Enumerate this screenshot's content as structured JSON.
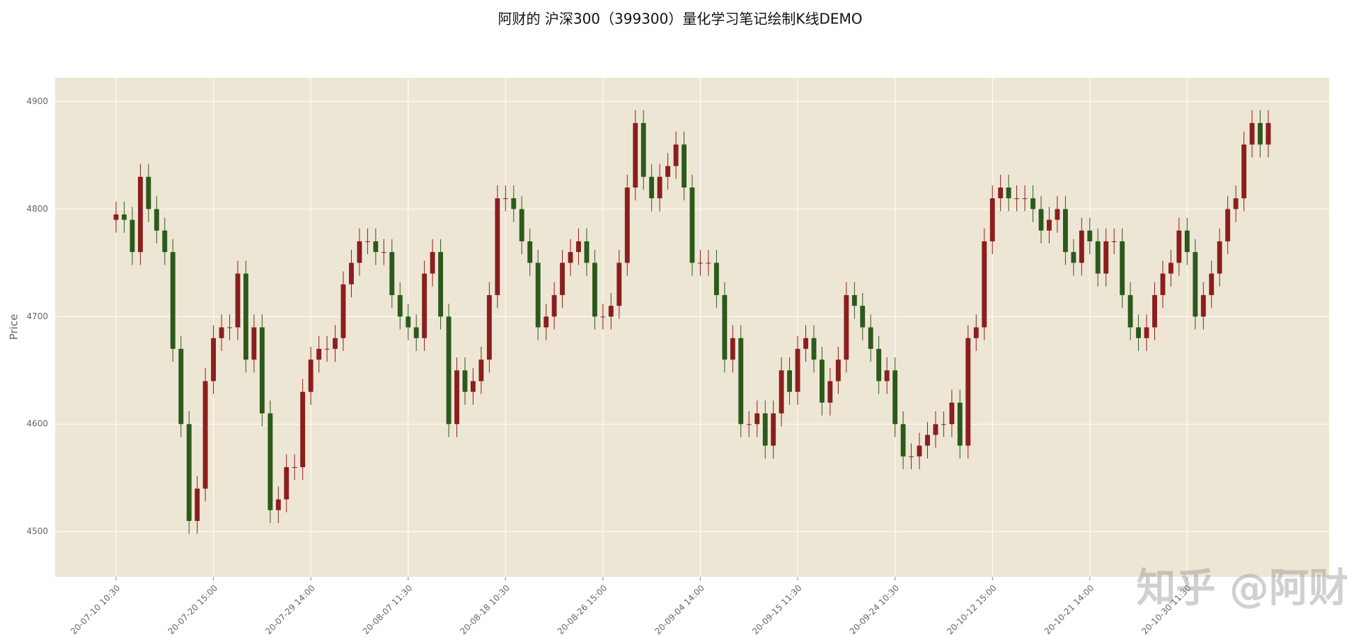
{
  "chart_data": {
    "type": "candlestick",
    "title": "阿财的 沪深300（399300）量化学习笔记绘制K线DEMO",
    "ylabel": "Price",
    "watermark": "知乎 @阿财",
    "up_color": "#8b1e1e",
    "down_color": "#2b5a1c",
    "grid": true,
    "xlim": [
      -7.5,
      149.5
    ],
    "ylim": [
      4458,
      4922
    ],
    "yticks": [
      4500,
      4600,
      4700,
      4800,
      4900
    ],
    "xticks": [
      {
        "value": 0,
        "label": "20-07-10 10:30"
      },
      {
        "value": 12,
        "label": "20-07-20 15:00"
      },
      {
        "value": 24,
        "label": "20-07-29 14:00"
      },
      {
        "value": 36,
        "label": "20-08-07 11:30"
      },
      {
        "value": 48,
        "label": "20-08-18 10:30"
      },
      {
        "value": 60,
        "label": "20-08-26 15:00"
      },
      {
        "value": 72,
        "label": "20-09-04 14:00"
      },
      {
        "value": 84,
        "label": "20-09-15 11:30"
      },
      {
        "value": 96,
        "label": "20-09-24 10:30"
      },
      {
        "value": 108,
        "label": "20-10-12 15:00"
      },
      {
        "value": 120,
        "label": "20-10-21 14:00"
      },
      {
        "value": 132,
        "label": "20-10-30 11:30"
      }
    ],
    "open": [
      4790,
      4795,
      4790,
      4760,
      4830,
      4800,
      4780,
      4760,
      4670,
      4600,
      4510,
      4540,
      4640,
      4680,
      4690,
      4690,
      4740,
      4660,
      4690,
      4610,
      4520,
      4530,
      4560,
      4560,
      4630,
      4660,
      4670,
      4670,
      4680,
      4730,
      4750,
      4770,
      4770,
      4760,
      4760,
      4720,
      4700,
      4690,
      4680,
      4740,
      4760,
      4700,
      4600,
      4650,
      4630,
      4640,
      4660,
      4720,
      4810,
      4810,
      4800,
      4770,
      4750,
      4690,
      4700,
      4720,
      4750,
      4760,
      4770,
      4750,
      4700,
      4700,
      4710,
      4750,
      4820,
      4880,
      4830,
      4810,
      4830,
      4840,
      4860,
      4820,
      4750,
      4750,
      4750,
      4720,
      4660,
      4680,
      4600,
      4600,
      4610,
      4580,
      4610,
      4650,
      4630,
      4670,
      4680,
      4660,
      4620,
      4640,
      4660,
      4720,
      4710,
      4690,
      4670,
      4640,
      4650,
      4600,
      4570,
      4570,
      4580,
      4590,
      4600,
      4600,
      4620,
      4580,
      4680,
      4690,
      4770,
      4810,
      4820,
      4810,
      4810,
      4810,
      4800,
      4780,
      4790,
      4800,
      4760,
      4750,
      4780,
      4770,
      4740,
      4770,
      4770,
      4720,
      4690,
      4680,
      4690,
      4720,
      4740,
      4750,
      4780,
      4760,
      4700,
      4720,
      4740,
      4770,
      4800,
      4810,
      4860,
      4880,
      4860
    ],
    "high": [
      4807,
      4807,
      4802,
      4842,
      4842,
      4812,
      4792,
      4772,
      4682,
      4612,
      4552,
      4652,
      4692,
      4702,
      4702,
      4752,
      4752,
      4702,
      4702,
      4622,
      4542,
      4572,
      4572,
      4642,
      4672,
      4682,
      4682,
      4692,
      4742,
      4762,
      4782,
      4782,
      4782,
      4772,
      4772,
      4732,
      4712,
      4702,
      4752,
      4772,
      4772,
      4712,
      4662,
      4662,
      4652,
      4672,
      4732,
      4822,
      4822,
      4822,
      4812,
      4782,
      4762,
      4712,
      4732,
      4762,
      4772,
      4782,
      4782,
      4762,
      4712,
      4722,
      4762,
      4832,
      4892,
      4892,
      4842,
      4842,
      4852,
      4872,
      4872,
      4832,
      4762,
      4762,
      4762,
      4732,
      4692,
      4692,
      4612,
      4622,
      4622,
      4622,
      4662,
      4662,
      4682,
      4692,
      4692,
      4672,
      4652,
      4672,
      4732,
      4732,
      4722,
      4702,
      4682,
      4662,
      4662,
      4612,
      4582,
      4592,
      4602,
      4612,
      4612,
      4632,
      4632,
      4692,
      4702,
      4782,
      4822,
      4832,
      4832,
      4822,
      4822,
      4822,
      4812,
      4802,
      4812,
      4812,
      4772,
      4792,
      4792,
      4782,
      4782,
      4782,
      4782,
      4732,
      4702,
      4702,
      4732,
      4752,
      4762,
      4792,
      4792,
      4772,
      4732,
      4752,
      4782,
      4812,
      4822,
      4872,
      4892,
      4892,
      4892
    ],
    "low": [
      4778,
      4778,
      4748,
      4748,
      4788,
      4768,
      4748,
      4658,
      4588,
      4498,
      4498,
      4528,
      4628,
      4668,
      4678,
      4678,
      4648,
      4648,
      4598,
      4508,
      4508,
      4518,
      4548,
      4548,
      4618,
      4648,
      4658,
      4658,
      4668,
      4718,
      4738,
      4758,
      4748,
      4748,
      4708,
      4688,
      4678,
      4668,
      4668,
      4728,
      4688,
      4588,
      4588,
      4618,
      4618,
      4628,
      4648,
      4708,
      4798,
      4788,
      4758,
      4738,
      4678,
      4678,
      4688,
      4708,
      4738,
      4748,
      4738,
      4688,
      4688,
      4688,
      4698,
      4738,
      4808,
      4818,
      4798,
      4798,
      4818,
      4828,
      4808,
      4738,
      4738,
      4738,
      4708,
      4648,
      4648,
      4588,
      4588,
      4588,
      4568,
      4568,
      4598,
      4618,
      4618,
      4658,
      4648,
      4608,
      4608,
      4628,
      4648,
      4698,
      4678,
      4658,
      4628,
      4628,
      4588,
      4558,
      4558,
      4558,
      4568,
      4578,
      4588,
      4588,
      4568,
      4568,
      4668,
      4678,
      4758,
      4798,
      4798,
      4798,
      4798,
      4788,
      4768,
      4768,
      4778,
      4748,
      4738,
      4738,
      4758,
      4728,
      4728,
      4758,
      4708,
      4678,
      4668,
      4668,
      4678,
      4708,
      4728,
      4738,
      4748,
      4688,
      4688,
      4708,
      4728,
      4758,
      4788,
      4798,
      4848,
      4848,
      4848
    ],
    "close": [
      4795,
      4790,
      4760,
      4830,
      4800,
      4780,
      4760,
      4670,
      4600,
      4510,
      4540,
      4640,
      4680,
      4690,
      4690,
      4740,
      4660,
      4690,
      4610,
      4520,
      4530,
      4560,
      4560,
      4630,
      4660,
      4670,
      4670,
      4680,
      4730,
      4750,
      4770,
      4770,
      4760,
      4760,
      4720,
      4700,
      4690,
      4680,
      4740,
      4760,
      4700,
      4600,
      4650,
      4630,
      4640,
      4660,
      4720,
      4810,
      4810,
      4800,
      4770,
      4750,
      4690,
      4700,
      4720,
      4750,
      4760,
      4770,
      4750,
      4700,
      4700,
      4710,
      4750,
      4820,
      4880,
      4830,
      4810,
      4830,
      4840,
      4860,
      4820,
      4750,
      4750,
      4750,
      4720,
      4660,
      4680,
      4600,
      4600,
      4610,
      4580,
      4610,
      4650,
      4630,
      4670,
      4680,
      4660,
      4620,
      4640,
      4660,
      4720,
      4710,
      4690,
      4670,
      4640,
      4650,
      4600,
      4570,
      4570,
      4580,
      4590,
      4600,
      4600,
      4620,
      4580,
      4680,
      4690,
      4770,
      4810,
      4820,
      4810,
      4810,
      4810,
      4800,
      4780,
      4790,
      4800,
      4760,
      4750,
      4780,
      4770,
      4740,
      4770,
      4770,
      4720,
      4690,
      4680,
      4690,
      4720,
      4740,
      4750,
      4780,
      4760,
      4700,
      4720,
      4740,
      4770,
      4800,
      4810,
      4860,
      4880,
      4860,
      4880
    ]
  }
}
